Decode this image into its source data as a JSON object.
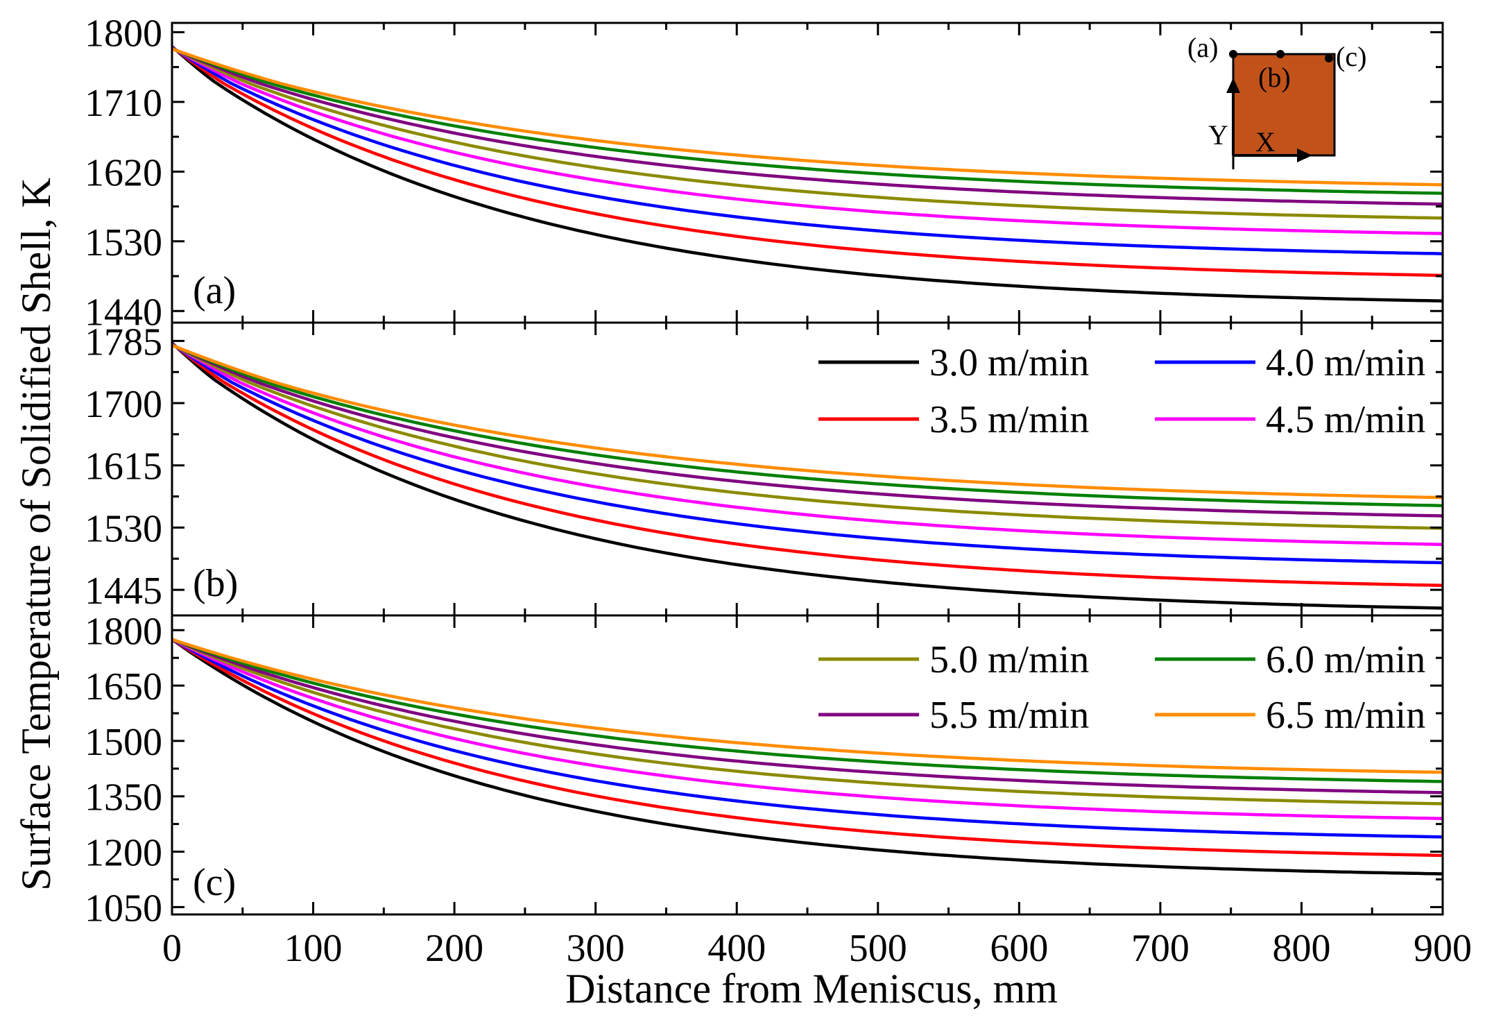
{
  "chart_data": {
    "type": "line",
    "xlabel": "Distance from Meniscus, mm",
    "ylabel": "Surface Temperature of Solidified Shell, K",
    "xlim": [
      0,
      900
    ],
    "xticks": [
      "0",
      "100",
      "200",
      "300",
      "400",
      "500",
      "600",
      "700",
      "800",
      "900"
    ],
    "legend": [
      {
        "label": "3.0 m/min",
        "color": "#000000"
      },
      {
        "label": "3.5 m/min",
        "color": "#ff0000"
      },
      {
        "label": "4.0 m/min",
        "color": "#0000ff"
      },
      {
        "label": "4.5 m/min",
        "color": "#ff00ff"
      },
      {
        "label": "5.0 m/min",
        "color": "#8b8b00"
      },
      {
        "label": "5.5 m/min",
        "color": "#800080"
      },
      {
        "label": "6.0 m/min",
        "color": "#008000"
      },
      {
        "label": "6.5 m/min",
        "color": "#ff8c00"
      }
    ],
    "panels": [
      {
        "label": "(a)",
        "ylim": [
          1425,
          1812
        ],
        "yticks": [
          "1440",
          "1530",
          "1620",
          "1710",
          "1800"
        ],
        "start": 1775,
        "end_values": [
          1453,
          1486,
          1514,
          1540,
          1560,
          1578,
          1592,
          1603
        ]
      },
      {
        "label": "(b)",
        "ylim": [
          1410,
          1810
        ],
        "yticks": [
          "1445",
          "1530",
          "1615",
          "1700",
          "1785"
        ],
        "start": 1775,
        "end_values": [
          1420,
          1451,
          1482,
          1507,
          1529,
          1546,
          1560,
          1571
        ]
      },
      {
        "label": "(c)",
        "ylim": [
          1030,
          1840
        ],
        "yticks": [
          "1050",
          "1200",
          "1350",
          "1500",
          "1650",
          "1800"
        ],
        "start": 1775,
        "end_values": [
          1140,
          1190,
          1240,
          1290,
          1330,
          1360,
          1390,
          1415
        ]
      }
    ],
    "inset": {
      "labels": {
        "a": "(a)",
        "b": "(b)",
        "c": "(c)",
        "x": "X",
        "y": "Y"
      },
      "fill": "#c1531a"
    }
  }
}
